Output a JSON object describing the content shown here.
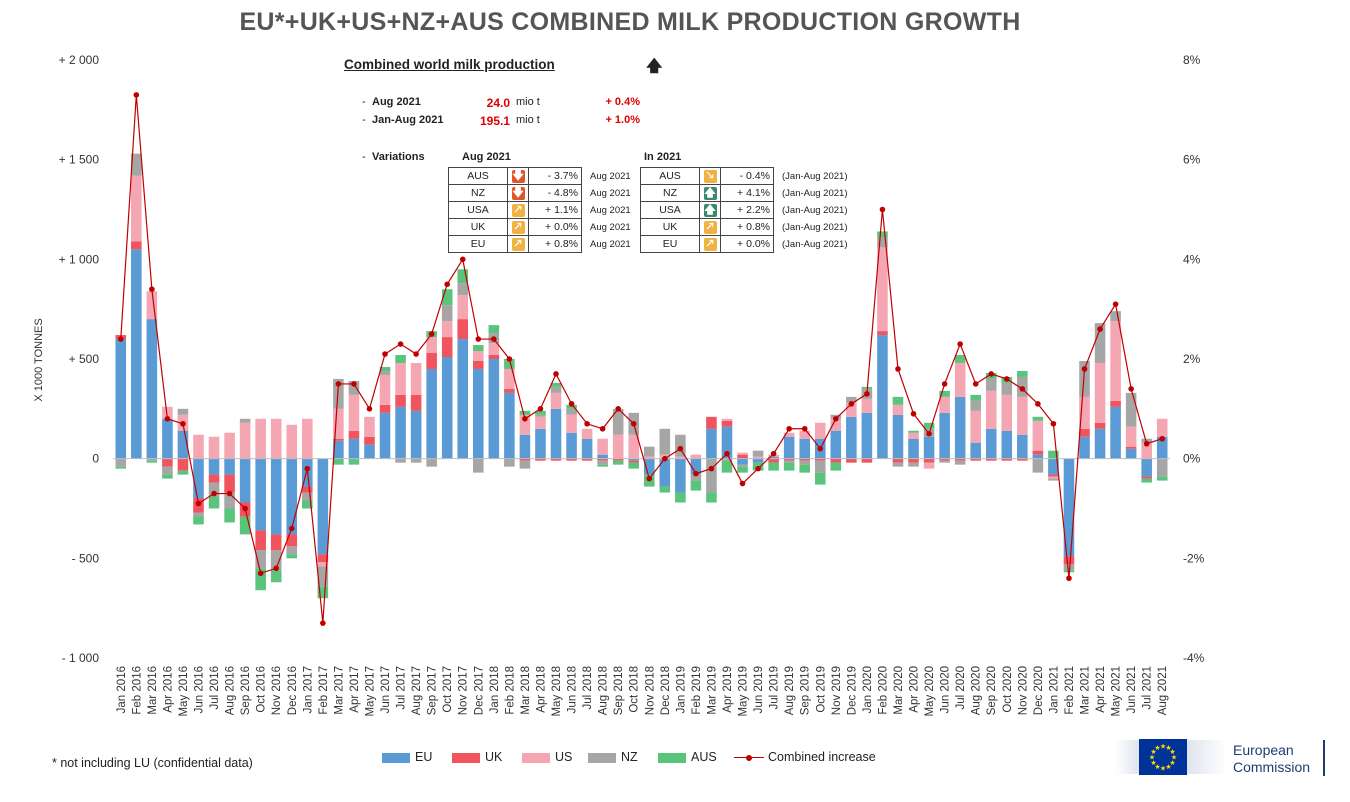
{
  "title": "EU*+UK+US+NZ+AUS COMBINED MILK PRODUCTION GROWTH",
  "y_axis_label": "X 1000 TONNES",
  "footnote": "* not including LU (confidential data)",
  "info": {
    "heading": "Combined world milk production",
    "arrow_icon": "up-arrow-icon",
    "rows": [
      {
        "dash": "-",
        "label": "Aug 2021",
        "value": "24.0",
        "unit": "mio t",
        "pct": "+ 0.4%"
      },
      {
        "dash": "-",
        "label": "Jan-Aug 2021",
        "value": "195.1",
        "unit": "mio t",
        "pct": "+ 1.0%"
      }
    ],
    "variations_dash": "-",
    "variations_label": "Variations",
    "col1_header": "Aug 2021",
    "col2_header": "In 2021",
    "aug": [
      {
        "country": "AUS",
        "trend": "down",
        "value": "- 3.7%",
        "period": "Aug 2021"
      },
      {
        "country": "NZ",
        "trend": "down",
        "value": "- 4.8%",
        "period": "Aug 2021"
      },
      {
        "country": "USA",
        "trend": "up-right",
        "value": "+ 1.1%",
        "period": "Aug 2021"
      },
      {
        "country": "UK",
        "trend": "up-right",
        "value": "+ 0.0%",
        "period": "Aug 2021"
      },
      {
        "country": "EU",
        "trend": "up-right",
        "value": "+ 0.8%",
        "period": "Aug 2021"
      }
    ],
    "ytd": [
      {
        "country": "AUS",
        "trend": "down-right",
        "value": "- 0.4%",
        "period": "(Jan-Aug 2021)"
      },
      {
        "country": "NZ",
        "trend": "up",
        "value": "+ 4.1%",
        "period": "(Jan-Aug 2021)"
      },
      {
        "country": "USA",
        "trend": "up",
        "value": "+ 2.2%",
        "period": "(Jan-Aug 2021)"
      },
      {
        "country": "UK",
        "trend": "up-right",
        "value": "+ 0.8%",
        "period": "(Jan-Aug 2021)"
      },
      {
        "country": "EU",
        "trend": "up-right",
        "value": "+ 0.0%",
        "period": "(Jan-Aug 2021)"
      }
    ]
  },
  "logo": {
    "line1": "European",
    "line2": "Commission"
  },
  "chart_data": {
    "type": "bar",
    "stacked": true,
    "xlabel": "",
    "ylabel": "X 1000 TONNES",
    "ylim": [
      -1000,
      2000
    ],
    "y_ticks": [
      -1000,
      -500,
      0,
      500,
      1000,
      1500,
      2000
    ],
    "y_tick_labels": [
      "- 1 000",
      "- 500",
      "0",
      "+ 500",
      "+ 1 000",
      "+ 1 500",
      "+ 2 000"
    ],
    "y2lim": [
      -4,
      8
    ],
    "y2_ticks": [
      -4,
      -2,
      0,
      2,
      4,
      6,
      8
    ],
    "y2_tick_labels": [
      "-4%",
      "-2%",
      "0%",
      "2%",
      "4%",
      "6%",
      "8%"
    ],
    "grid": false,
    "legend_position": "bottom",
    "categories": [
      "Jan 2016",
      "Feb 2016",
      "Mar 2016",
      "Apr 2016",
      "May 2016",
      "Jun 2016",
      "Jul 2016",
      "Aug 2016",
      "Sep 2016",
      "Oct 2016",
      "Nov 2016",
      "Dec 2016",
      "Jan 2017",
      "Feb 2017",
      "Mar 2017",
      "Apr 2017",
      "May 2017",
      "Jun 2017",
      "Jul 2017",
      "Aug 2017",
      "Sep 2017",
      "Oct 2017",
      "Nov 2017",
      "Dec 2017",
      "Jan 2018",
      "Feb 2018",
      "Mar 2018",
      "Apr 2018",
      "May 2018",
      "Jun 2018",
      "Jul 2018",
      "Aug 2018",
      "Sep 2018",
      "Oct 2018",
      "Nov 2018",
      "Dec 2018",
      "Jan 2019",
      "Feb 2019",
      "Mar 2019",
      "Apr 2019",
      "May 2019",
      "Jun 2019",
      "Jul 2019",
      "Aug 2019",
      "Sep 2019",
      "Oct 2019",
      "Nov 2019",
      "Dec 2019",
      "Jan 2020",
      "Feb 2020",
      "Mar 2020",
      "Apr 2020",
      "May 2020",
      "Jun 2020",
      "Jul 2020",
      "Aug 2020",
      "Sep 2020",
      "Oct 2020",
      "Nov 2020",
      "Dec 2020",
      "Jan 2021",
      "Feb 2021",
      "Mar 2021",
      "Apr 2021",
      "May 2021",
      "Jun 2021",
      "Jul 2021",
      "Aug 2021"
    ],
    "x_tick_labels": [
      "Jan 2016",
      "Feb 2016",
      "Mar 2016",
      "Apr 2016",
      "May 2016",
      "Jun 2016",
      "Jul 2016",
      "Aug 2016",
      "Sep 2016",
      "Oct 2016",
      "Nov 2016",
      "Dec 2016",
      "Jan 2017",
      "Feb 2017",
      "Mar 2017",
      "Apr 2017",
      "May 2017",
      "Jun 2017",
      "Jul 2017",
      "Aug 2017",
      "Sep 2017",
      "Oct 2017",
      "Nov 2017",
      "Dec 2017",
      "Jan 2018",
      "Feb 2018",
      "Mar 2018",
      "Apr 2018",
      "May 2018",
      "Jun 2018",
      "Jul 2018",
      "Aug 2018",
      "Sep 2018",
      "Oct 2018",
      "Nov 2018",
      "Dec 2018",
      "Jan 2019",
      "Feb 2019",
      "Mar 2019",
      "Apr 2019",
      "May 2019",
      "Jun 2019",
      "Jul 2019",
      "Aug 2019",
      "Sep 2019",
      "Oct 2019",
      "Nov 2019",
      "Dec 2019",
      "Jan 2020",
      "Feb 2020",
      "Mar 2020",
      "Apr 2020",
      "May 2020",
      "Jun 2020",
      "Jul 2020",
      "Aug 2020",
      "Sep 2020",
      "Oct 2020",
      "Nov 2020",
      "Dec 2020",
      "Jan 2021",
      "Feb 2021",
      "Mar 2021",
      "Apr 2021",
      "May 2021",
      "Jun 2021",
      "Jul 2021",
      "Aug 2021"
    ],
    "series": [
      {
        "name": "EU",
        "color": "#5b9bd5",
        "values": [
          600,
          1050,
          700,
          200,
          140,
          -200,
          -80,
          -80,
          -220,
          -360,
          -380,
          -380,
          -140,
          -480,
          90,
          100,
          70,
          230,
          260,
          240,
          450,
          510,
          600,
          450,
          500,
          330,
          120,
          150,
          250,
          130,
          100,
          20,
          0,
          -10,
          -80,
          -140,
          -170,
          -80,
          150,
          160,
          -30,
          -20,
          10,
          110,
          100,
          100,
          140,
          210,
          230,
          620,
          220,
          100,
          110,
          230,
          310,
          80,
          150,
          140,
          120,
          20,
          -80,
          -490,
          110,
          150,
          260,
          50,
          -90,
          110
        ]
      },
      {
        "name": "UK",
        "color": "#f0545e",
        "values": [
          20,
          40,
          0,
          -40,
          -60,
          -70,
          -40,
          -90,
          -70,
          -100,
          -80,
          -60,
          -30,
          -40,
          10,
          40,
          40,
          40,
          60,
          80,
          80,
          100,
          100,
          40,
          20,
          20,
          -10,
          -10,
          -10,
          -10,
          -10,
          -10,
          -10,
          -10,
          0,
          0,
          0,
          0,
          60,
          30,
          20,
          0,
          -20,
          -10,
          -10,
          -10,
          -20,
          -20,
          -20,
          20,
          -20,
          -20,
          -20,
          -10,
          -10,
          -10,
          -10,
          -10,
          -10,
          20,
          -10,
          -40,
          40,
          30,
          30,
          10,
          -10,
          0
        ]
      },
      {
        "name": "US",
        "color": "#f4a6b2",
        "values": [
          0,
          330,
          140,
          60,
          80,
          120,
          110,
          130,
          180,
          200,
          200,
          170,
          200,
          -20,
          150,
          180,
          100,
          150,
          160,
          160,
          80,
          80,
          120,
          50,
          60,
          100,
          100,
          60,
          80,
          90,
          50,
          80,
          120,
          120,
          10,
          20,
          10,
          20,
          0,
          10,
          10,
          10,
          10,
          20,
          40,
          80,
          60,
          70,
          70,
          420,
          50,
          30,
          -30,
          80,
          170,
          160,
          190,
          180,
          190,
          150,
          -10,
          0,
          160,
          300,
          400,
          100,
          80,
          90
        ]
      },
      {
        "name": "NZ",
        "color": "#a6a6a6",
        "values": [
          -40,
          110,
          -10,
          -40,
          30,
          -20,
          -70,
          -80,
          20,
          -90,
          -100,
          -40,
          -40,
          -100,
          150,
          70,
          0,
          20,
          -20,
          -20,
          -40,
          80,
          60,
          -70,
          50,
          -40,
          -40,
          10,
          30,
          30,
          0,
          -20,
          130,
          110,
          50,
          130,
          110,
          -30,
          -170,
          -10,
          -10,
          30,
          0,
          -10,
          -20,
          -60,
          20,
          30,
          50,
          50,
          -20,
          -20,
          40,
          -10,
          -20,
          50,
          60,
          60,
          100,
          -70,
          -10,
          -30,
          180,
          200,
          50,
          170,
          20,
          -90
        ]
      },
      {
        "name": "AUS",
        "color": "#5ac47d",
        "values": [
          -10,
          0,
          -10,
          -20,
          -20,
          -40,
          -60,
          -70,
          -90,
          -110,
          -60,
          -20,
          -40,
          -60,
          -30,
          -30,
          0,
          20,
          40,
          0,
          30,
          80,
          70,
          30,
          40,
          50,
          20,
          20,
          20,
          20,
          0,
          -10,
          -20,
          -30,
          -60,
          -30,
          -50,
          -50,
          -50,
          -60,
          -30,
          -40,
          -40,
          -40,
          -40,
          -60,
          -40,
          0,
          10,
          30,
          40,
          10,
          30,
          30,
          40,
          30,
          30,
          30,
          30,
          20,
          40,
          -10,
          0,
          0,
          0,
          0,
          -20,
          -20
        ]
      }
    ],
    "line": {
      "name": "Combined increase",
      "axis": "right",
      "color": "#c00000",
      "values": [
        2.4,
        7.3,
        3.4,
        0.8,
        0.7,
        -0.9,
        -0.7,
        -0.7,
        -1.0,
        -2.3,
        -2.2,
        -1.4,
        -0.2,
        -3.3,
        1.5,
        1.5,
        1.0,
        2.1,
        2.3,
        2.1,
        2.5,
        3.5,
        4.0,
        2.4,
        2.4,
        2.0,
        0.8,
        1.0,
        1.7,
        1.1,
        0.7,
        0.6,
        1.0,
        0.7,
        -0.4,
        0.0,
        0.2,
        -0.3,
        -0.2,
        0.1,
        -0.5,
        -0.2,
        0.1,
        0.6,
        0.6,
        0.2,
        0.8,
        1.1,
        1.3,
        5.0,
        1.8,
        0.9,
        0.5,
        1.5,
        2.3,
        1.5,
        1.7,
        1.6,
        1.4,
        1.1,
        0.7,
        -2.4,
        1.8,
        2.6,
        3.1,
        1.4,
        0.3,
        0.4
      ]
    }
  }
}
